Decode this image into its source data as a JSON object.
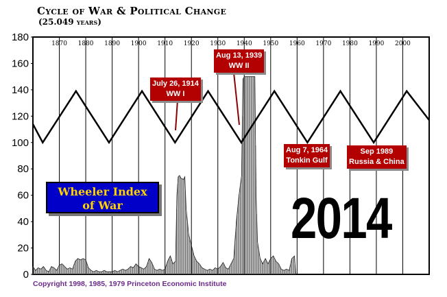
{
  "title": "Cycle of War & Political Change",
  "subtitle": "(25.049 years)",
  "copyright": "Copyright 1998, 1985, 1979 Princeton Economic Institute",
  "index_label_line1": "Wheeler Index",
  "index_label_line2": "of War",
  "big_year": "2014",
  "events": [
    {
      "date": "July 26, 1914",
      "name": "WW I",
      "year": 1914.6
    },
    {
      "date": "Aug 13, 1939",
      "name": "WW II",
      "year": 1939.6
    },
    {
      "date": "Aug 7, 1964",
      "name": "Tonkin Gulf",
      "year": 1964.6
    },
    {
      "date": "Sep 1989",
      "name": "Russia & China",
      "year": 1989.7
    }
  ],
  "colors": {
    "event_box": "#b30000",
    "index_box": "#0000c8",
    "index_text": "#ffd200",
    "copyright": "#6b2a8a"
  },
  "chart_data": {
    "type": "line",
    "xlim": [
      1860,
      2010
    ],
    "ylim": [
      0,
      180
    ],
    "yticks": [
      0,
      20,
      40,
      60,
      80,
      100,
      120,
      140,
      160,
      180
    ],
    "xticks": [
      1870,
      1880,
      1890,
      1900,
      1910,
      1920,
      1930,
      1940,
      1950,
      1960,
      1970,
      1980,
      1990,
      2000
    ],
    "grid": "vertical",
    "cycle": {
      "period_years": 25.049,
      "points": [
        [
          1860,
          114
        ],
        [
          1863.7,
          100
        ],
        [
          1876.3,
          139
        ],
        [
          1888.8,
          100
        ],
        [
          1901.3,
          139
        ],
        [
          1913.8,
          100
        ],
        [
          1926.3,
          139
        ],
        [
          1938.9,
          100
        ],
        [
          1951.4,
          139
        ],
        [
          1963.9,
          100
        ],
        [
          1976.4,
          139
        ],
        [
          1989,
          100
        ],
        [
          2001.5,
          139
        ],
        [
          2010,
          117
        ]
      ]
    },
    "war_index": {
      "points": [
        [
          1860,
          6
        ],
        [
          1861,
          3
        ],
        [
          1862,
          5
        ],
        [
          1863,
          4
        ],
        [
          1864,
          6
        ],
        [
          1865,
          3
        ],
        [
          1866,
          2
        ],
        [
          1867,
          6
        ],
        [
          1868,
          5
        ],
        [
          1869,
          3
        ],
        [
          1870,
          7
        ],
        [
          1871,
          8
        ],
        [
          1872,
          6
        ],
        [
          1873,
          4
        ],
        [
          1874,
          5
        ],
        [
          1875,
          4
        ],
        [
          1876,
          10
        ],
        [
          1877,
          12
        ],
        [
          1878,
          11
        ],
        [
          1879,
          12
        ],
        [
          1880,
          11
        ],
        [
          1881,
          5
        ],
        [
          1882,
          3
        ],
        [
          1883,
          2
        ],
        [
          1884,
          3
        ],
        [
          1885,
          2
        ],
        [
          1886,
          2
        ],
        [
          1887,
          3
        ],
        [
          1888,
          2
        ],
        [
          1889,
          2
        ],
        [
          1890,
          2
        ],
        [
          1891,
          3
        ],
        [
          1892,
          2
        ],
        [
          1893,
          3
        ],
        [
          1894,
          4
        ],
        [
          1895,
          3
        ],
        [
          1896,
          4
        ],
        [
          1897,
          6
        ],
        [
          1898,
          5
        ],
        [
          1899,
          8
        ],
        [
          1900,
          6
        ],
        [
          1901,
          5
        ],
        [
          1902,
          4
        ],
        [
          1903,
          6
        ],
        [
          1904,
          12
        ],
        [
          1905,
          9
        ],
        [
          1906,
          4
        ],
        [
          1907,
          3
        ],
        [
          1908,
          4
        ],
        [
          1909,
          3
        ],
        [
          1910,
          4
        ],
        [
          1911,
          10
        ],
        [
          1912,
          14
        ],
        [
          1913,
          8
        ],
        [
          1914,
          10
        ],
        [
          1914.5,
          60
        ],
        [
          1915,
          74
        ],
        [
          1915.5,
          75
        ],
        [
          1916,
          73
        ],
        [
          1917,
          72
        ],
        [
          1917.5,
          74
        ],
        [
          1918,
          50
        ],
        [
          1919,
          30
        ],
        [
          1920,
          22
        ],
        [
          1921,
          14
        ],
        [
          1922,
          10
        ],
        [
          1923,
          8
        ],
        [
          1924,
          5
        ],
        [
          1925,
          4
        ],
        [
          1926,
          3
        ],
        [
          1927,
          4
        ],
        [
          1928,
          3
        ],
        [
          1929,
          5
        ],
        [
          1930,
          4
        ],
        [
          1931,
          6
        ],
        [
          1932,
          9
        ],
        [
          1933,
          5
        ],
        [
          1934,
          4
        ],
        [
          1935,
          8
        ],
        [
          1936,
          12
        ],
        [
          1937,
          40
        ],
        [
          1938,
          60
        ],
        [
          1939,
          75
        ],
        [
          1939.5,
          148
        ],
        [
          1940,
          150
        ],
        [
          1942,
          150
        ],
        [
          1943,
          150
        ],
        [
          1944,
          150
        ],
        [
          1944.5,
          60
        ],
        [
          1945,
          25
        ],
        [
          1946,
          12
        ],
        [
          1947,
          8
        ],
        [
          1948,
          12
        ],
        [
          1949,
          8
        ],
        [
          1950,
          12
        ],
        [
          1951,
          14
        ],
        [
          1952,
          10
        ],
        [
          1953,
          8
        ],
        [
          1954,
          4
        ],
        [
          1955,
          3
        ],
        [
          1956,
          4
        ],
        [
          1957,
          3
        ],
        [
          1958,
          12
        ],
        [
          1959,
          14
        ],
        [
          1959.5,
          0
        ]
      ]
    }
  }
}
